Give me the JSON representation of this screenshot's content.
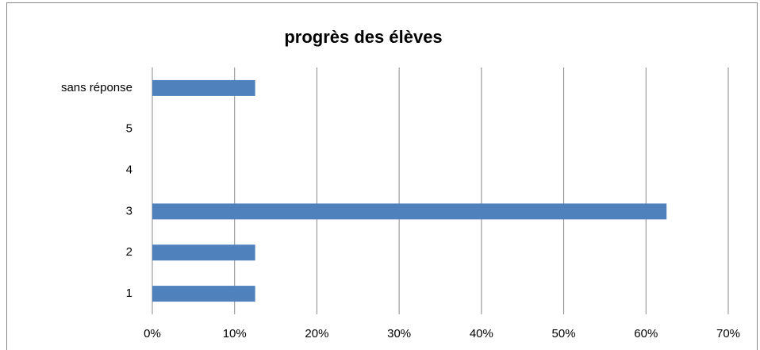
{
  "chart_data": {
    "type": "bar",
    "orientation": "horizontal",
    "title": "progrès des élèves",
    "categories": [
      "1",
      "2",
      "3",
      "4",
      "5",
      "sans réponse"
    ],
    "values": [
      12.5,
      12.5,
      62.5,
      0,
      0,
      12.5
    ],
    "color": "#4f81bd",
    "xlim": [
      0,
      70
    ],
    "xticks": [
      {
        "value": 0,
        "label": "0%"
      },
      {
        "value": 10,
        "label": "10%"
      },
      {
        "value": 20,
        "label": "20%"
      },
      {
        "value": 30,
        "label": "30%"
      },
      {
        "value": 40,
        "label": "40%"
      },
      {
        "value": 50,
        "label": "50%"
      },
      {
        "value": 60,
        "label": "60%"
      },
      {
        "value": 70,
        "label": "70%"
      }
    ],
    "grid": true
  }
}
